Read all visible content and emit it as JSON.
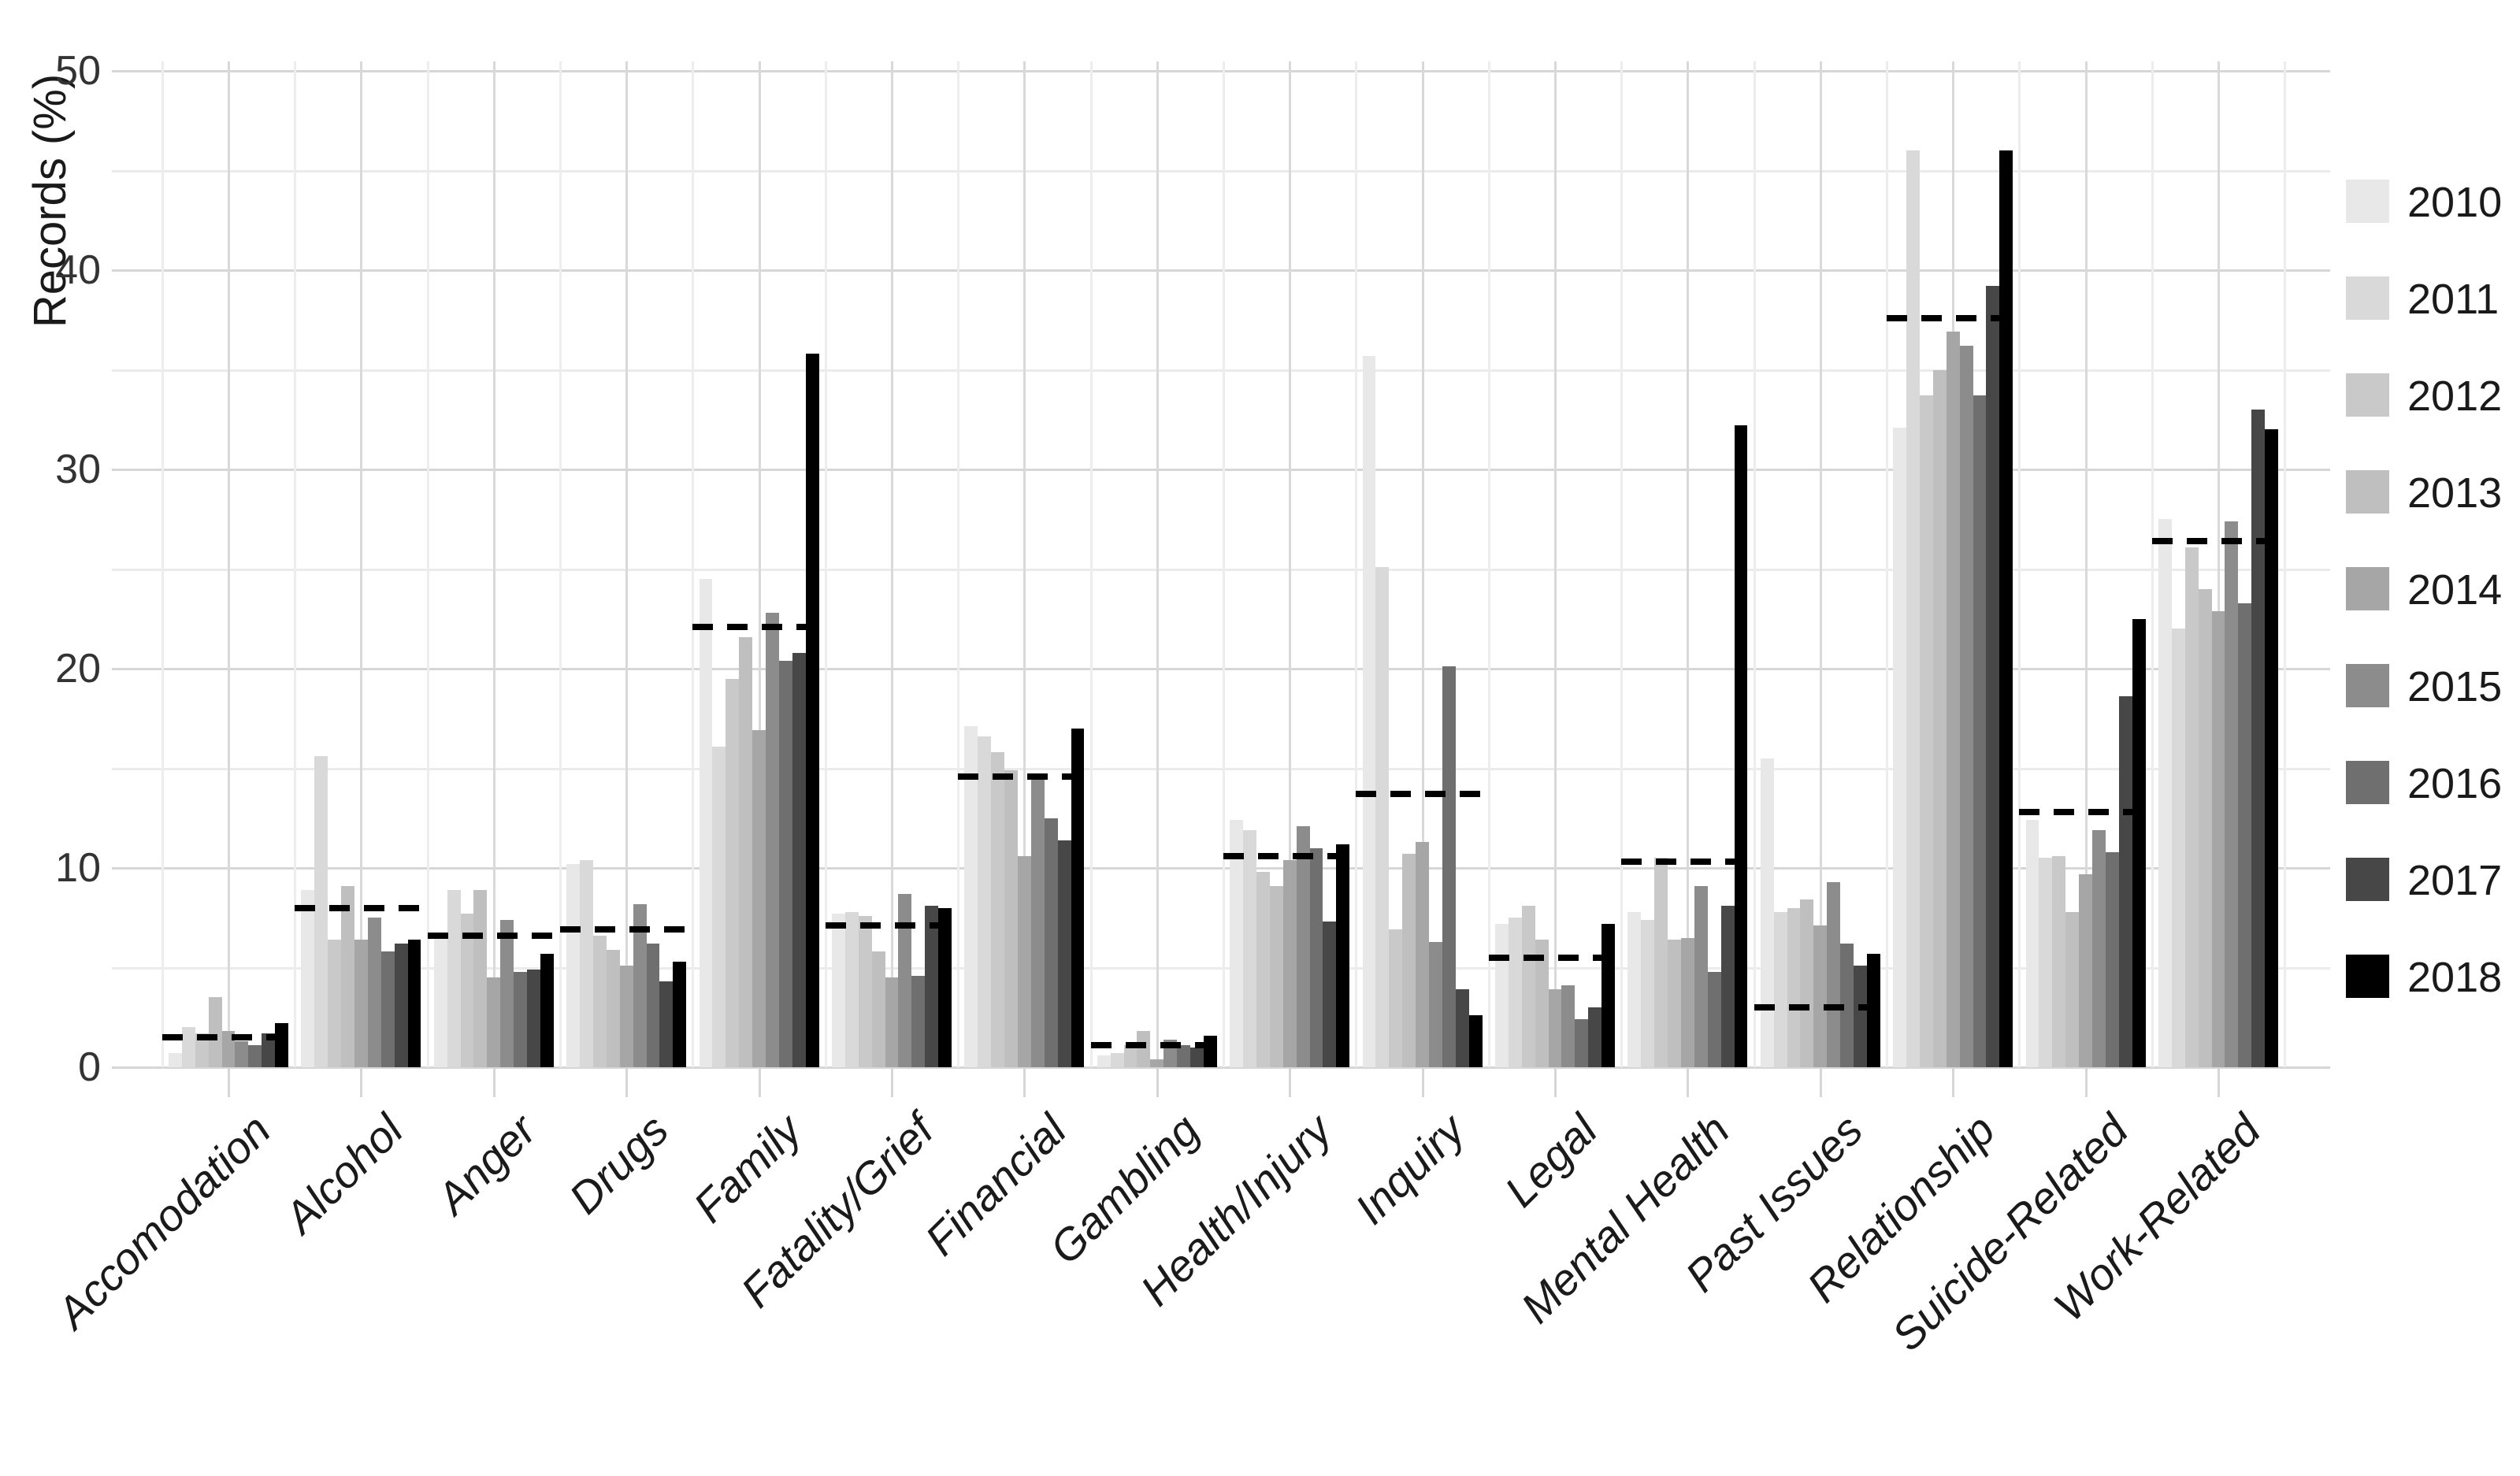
{
  "chart_data": {
    "type": "bar",
    "title": "",
    "xlabel": "",
    "ylabel": "Records (%)",
    "ylim": [
      0,
      50.5
    ],
    "yticks": [
      0,
      10,
      20,
      30,
      40,
      50
    ],
    "minor_yticks": [
      5,
      15,
      25,
      35,
      45
    ],
    "grid": "on (light gray major + minor, horizontal and vertical)",
    "legend_position": "right",
    "bar_grouping": "9 year-series grouped per category",
    "dashed_line_color": "#000000",
    "grid_major_color": "#d6d6d6",
    "grid_minor_color": "#ebebeb",
    "categories": [
      "Accomodation",
      "Alcohol",
      "Anger",
      "Drugs",
      "Family",
      "Fatality/Grief",
      "Financial",
      "Gambling",
      "Health/Injury",
      "Inquiry",
      "Legal",
      "Mental Health",
      "Past Issues",
      "Relationship",
      "Suicide-Related",
      "Work-Related"
    ],
    "series": [
      {
        "name": "2010",
        "color": "#e8e8e8",
        "values": [
          0.7,
          8.9,
          6.6,
          10.2,
          24.5,
          7.7,
          17.1,
          0.6,
          12.4,
          35.7,
          7.2,
          7.8,
          15.5,
          32.1,
          12.4,
          27.5
        ]
      },
      {
        "name": "2011",
        "color": "#d9d9d9",
        "values": [
          2.0,
          15.6,
          8.9,
          10.4,
          16.1,
          7.8,
          16.6,
          0.7,
          11.9,
          25.1,
          7.5,
          7.4,
          7.8,
          46.0,
          10.5,
          22.0
        ]
      },
      {
        "name": "2012",
        "color": "#c9c9c9",
        "values": [
          1.7,
          6.4,
          7.7,
          6.6,
          19.5,
          7.6,
          15.8,
          1.1,
          9.8,
          6.9,
          8.1,
          10.5,
          8.0,
          33.7,
          10.6,
          26.1
        ]
      },
      {
        "name": "2013",
        "color": "#bfbfbf",
        "values": [
          3.5,
          9.1,
          8.9,
          5.9,
          21.6,
          5.8,
          14.9,
          1.8,
          9.1,
          10.7,
          6.4,
          6.4,
          8.4,
          35.0,
          7.8,
          24.0
        ]
      },
      {
        "name": "2014",
        "color": "#a6a6a6",
        "values": [
          1.8,
          6.4,
          4.5,
          5.1,
          16.9,
          4.5,
          10.6,
          0.4,
          10.4,
          11.3,
          3.9,
          6.5,
          7.1,
          36.9,
          9.7,
          22.9
        ]
      },
      {
        "name": "2015",
        "color": "#8c8c8c",
        "values": [
          1.3,
          7.5,
          7.4,
          8.2,
          22.8,
          8.7,
          14.6,
          1.4,
          12.1,
          6.3,
          4.1,
          9.1,
          9.3,
          36.2,
          11.9,
          27.4
        ]
      },
      {
        "name": "2016",
        "color": "#6f6f6f",
        "values": [
          1.1,
          5.8,
          4.8,
          6.2,
          20.4,
          4.6,
          12.5,
          1.1,
          11.0,
          20.1,
          2.4,
          4.8,
          6.2,
          33.7,
          10.8,
          23.3
        ]
      },
      {
        "name": "2017",
        "color": "#474747",
        "values": [
          1.7,
          6.2,
          4.9,
          4.3,
          20.8,
          8.1,
          11.4,
          1.0,
          7.3,
          3.9,
          3.0,
          8.1,
          5.1,
          39.2,
          18.6,
          33.0
        ]
      },
      {
        "name": "2018",
        "color": "#000000",
        "values": [
          2.2,
          6.4,
          5.7,
          5.3,
          35.8,
          8.0,
          17.0,
          1.6,
          11.2,
          2.6,
          7.2,
          32.2,
          5.7,
          46.0,
          22.5,
          32.0
        ]
      }
    ],
    "dashed_reference_lines": {
      "description": "black dashed horizontal segment drawn across each category group",
      "values": [
        1.5,
        8.0,
        6.6,
        6.9,
        22.1,
        7.1,
        14.6,
        1.1,
        10.6,
        13.7,
        5.5,
        10.3,
        3.0,
        37.6,
        12.8,
        26.4
      ]
    },
    "legend_entries": [
      "2010",
      "2011",
      "2012",
      "2013",
      "2014",
      "2015",
      "2016",
      "2017",
      "2018"
    ]
  }
}
